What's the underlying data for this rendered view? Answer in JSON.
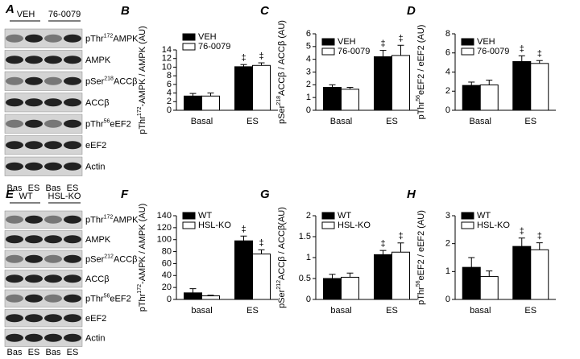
{
  "chart_data": [
    {
      "type": "bar",
      "panel": "B",
      "ylabel": [
        "pThr",
        "172",
        "-AMPK / AMPK (AU)"
      ],
      "categories": [
        "Basal",
        "ES"
      ],
      "series": [
        {
          "name": "VEH",
          "color": "#000000",
          "values": [
            3.3,
            10.1
          ],
          "errors": [
            0.6,
            0.5
          ]
        },
        {
          "name": "76-0079",
          "color": "#ffffff",
          "values": [
            3.3,
            10.4
          ],
          "errors": [
            0.7,
            0.6
          ]
        }
      ],
      "annotations": [
        "‡",
        "‡"
      ],
      "ylim": [
        0,
        14
      ],
      "yticks": [
        0,
        2,
        4,
        6,
        8,
        10,
        12,
        14
      ]
    },
    {
      "type": "bar",
      "panel": "C",
      "ylabel": [
        "pSer",
        "218",
        "ACCβ / ACCβ (AU)"
      ],
      "categories": [
        "Basal",
        "ES"
      ],
      "series": [
        {
          "name": "VEH",
          "color": "#000000",
          "values": [
            1.8,
            4.2
          ],
          "errors": [
            0.2,
            0.5
          ]
        },
        {
          "name": "76-0079",
          "color": "#ffffff",
          "values": [
            1.65,
            4.3
          ],
          "errors": [
            0.15,
            0.8
          ]
        }
      ],
      "annotations": [
        "‡",
        "‡"
      ],
      "ylim": [
        0,
        6
      ],
      "yticks": [
        0,
        1,
        2,
        3,
        4,
        5,
        6
      ]
    },
    {
      "type": "bar",
      "panel": "D",
      "ylabel": [
        "pThr",
        "56",
        "eEF2 / eEF2 (AU)"
      ],
      "categories": [
        "Basal",
        "ES"
      ],
      "series": [
        {
          "name": "VEH",
          "color": "#000000",
          "values": [
            2.6,
            5.1
          ],
          "errors": [
            0.35,
            0.6
          ]
        },
        {
          "name": "76-0079",
          "color": "#ffffff",
          "values": [
            2.65,
            4.9
          ],
          "errors": [
            0.5,
            0.3
          ]
        }
      ],
      "annotations": [
        "‡",
        "‡"
      ],
      "ylim": [
        0,
        8
      ],
      "yticks": [
        0,
        2,
        4,
        6,
        8
      ]
    },
    {
      "type": "bar",
      "panel": "F",
      "ylabel": [
        "pThr",
        "172",
        "-AMPK / AMPK (AU)"
      ],
      "categories": [
        "basal",
        "ES"
      ],
      "series": [
        {
          "name": "WT",
          "color": "#000000",
          "values": [
            11,
            98
          ],
          "errors": [
            7,
            8
          ]
        },
        {
          "name": "HSL-KO",
          "color": "#ffffff",
          "values": [
            6,
            76
          ],
          "errors": [
            1,
            7
          ]
        }
      ],
      "annotations": [
        "‡",
        "‡"
      ],
      "ylim": [
        0,
        140
      ],
      "yticks": [
        0,
        20,
        40,
        60,
        80,
        100,
        120,
        140
      ]
    },
    {
      "type": "bar",
      "panel": "G",
      "ylabel": [
        "pSer",
        "212",
        "ACCβ / ACCβ(AU)"
      ],
      "categories": [
        "basal",
        "ES"
      ],
      "series": [
        {
          "name": "WT",
          "color": "#000000",
          "values": [
            0.5,
            1.07
          ],
          "errors": [
            0.1,
            0.1
          ]
        },
        {
          "name": "HSL-KO",
          "color": "#ffffff",
          "values": [
            0.53,
            1.13
          ],
          "errors": [
            0.1,
            0.22
          ]
        }
      ],
      "annotations": [
        "‡",
        "‡"
      ],
      "ylim": [
        0,
        2
      ],
      "yticks": [
        0,
        0.5,
        1,
        1.5,
        2
      ]
    },
    {
      "type": "bar",
      "panel": "H",
      "ylabel": [
        "pThr",
        "56",
        "eEF2 / eEF2 (AU)"
      ],
      "categories": [
        "basal",
        "ES"
      ],
      "series": [
        {
          "name": "WT",
          "color": "#000000",
          "values": [
            1.15,
            1.9
          ],
          "errors": [
            0.35,
            0.3
          ]
        },
        {
          "name": "HSL-KO",
          "color": "#ffffff",
          "values": [
            0.82,
            1.78
          ],
          "errors": [
            0.2,
            0.25
          ]
        }
      ],
      "annotations": [
        "‡",
        "‡"
      ],
      "ylim": [
        0,
        3
      ],
      "yticks": [
        0,
        1,
        2,
        3
      ]
    }
  ],
  "blots": [
    {
      "panel": "A",
      "groups": [
        "VEH",
        "76-0079"
      ],
      "lanes": [
        "Bas",
        "ES",
        "Bas",
        "ES"
      ],
      "rows": [
        [
          "pThr",
          "172",
          "AMPK"
        ],
        [
          "AMPK"
        ],
        [
          "pSer",
          "218",
          "ACCβ"
        ],
        [
          "ACCβ"
        ],
        [
          "pThr",
          "56",
          "eEF2"
        ],
        [
          "eEF2"
        ],
        [
          "Actin"
        ]
      ]
    },
    {
      "panel": "E",
      "groups": [
        "WT",
        "HSL-KO"
      ],
      "lanes": [
        "Bas",
        "ES",
        "Bas",
        "ES"
      ],
      "rows": [
        [
          "pThr",
          "172",
          "AMPK"
        ],
        [
          "AMPK"
        ],
        [
          "pSer",
          "212",
          "ACCβ"
        ],
        [
          "ACCβ"
        ],
        [
          "pThr",
          "56",
          "eEF2"
        ],
        [
          "eEF2"
        ],
        [
          "Actin"
        ]
      ]
    }
  ]
}
